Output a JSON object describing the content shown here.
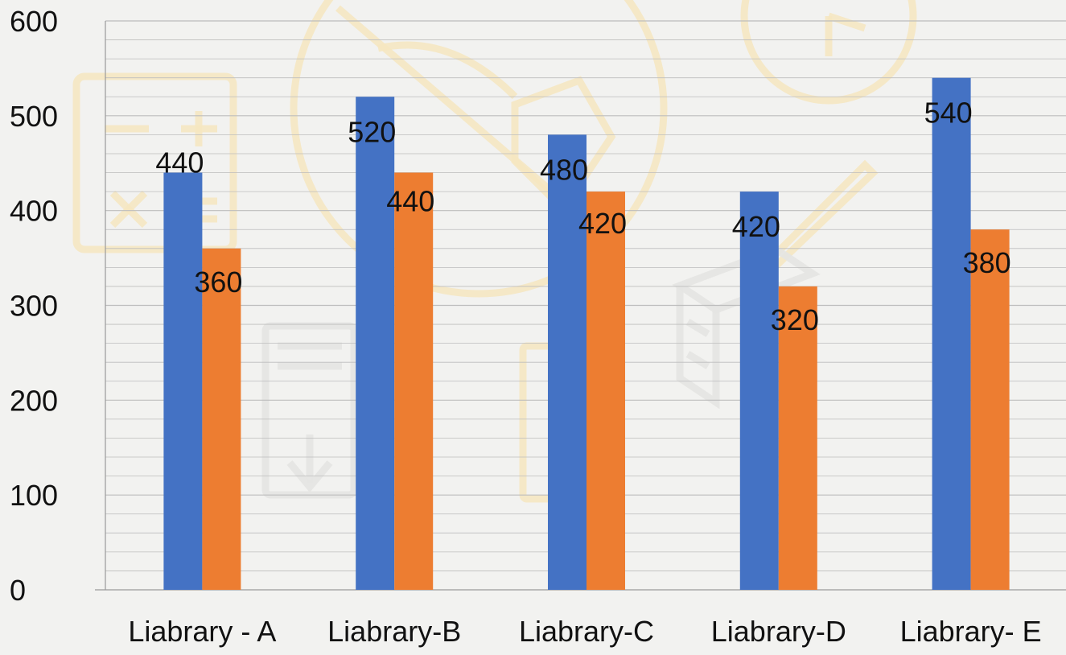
{
  "chart_data": {
    "type": "bar",
    "categories": [
      "Liabrary - A",
      "Liabrary-B",
      "Liabrary-C",
      "Liabrary-D",
      "Liabrary- E"
    ],
    "series": [
      {
        "values": [
          440,
          520,
          480,
          420,
          540
        ],
        "color": "#4472c4"
      },
      {
        "values": [
          360,
          440,
          420,
          320,
          380
        ],
        "color": "#ed7d31"
      }
    ],
    "y_ticks": [
      "0",
      "100",
      "200",
      "300",
      "400",
      "500",
      "600"
    ],
    "ylim": [
      0,
      600
    ],
    "major_step": 100,
    "minor_step": 20,
    "grid": true,
    "data_labels": true,
    "legend": "none",
    "colors": {
      "background": "#f2f2f0",
      "gridline": "#bdbdbd",
      "axis": "#9a9a9a",
      "text": "#111111"
    },
    "watermark_icons": [
      "calculator-icon",
      "hand-pen-icon",
      "clock-icon",
      "pencil-icon",
      "pdf-download-icon",
      "book-stack-icon",
      "notebook-icon"
    ]
  }
}
